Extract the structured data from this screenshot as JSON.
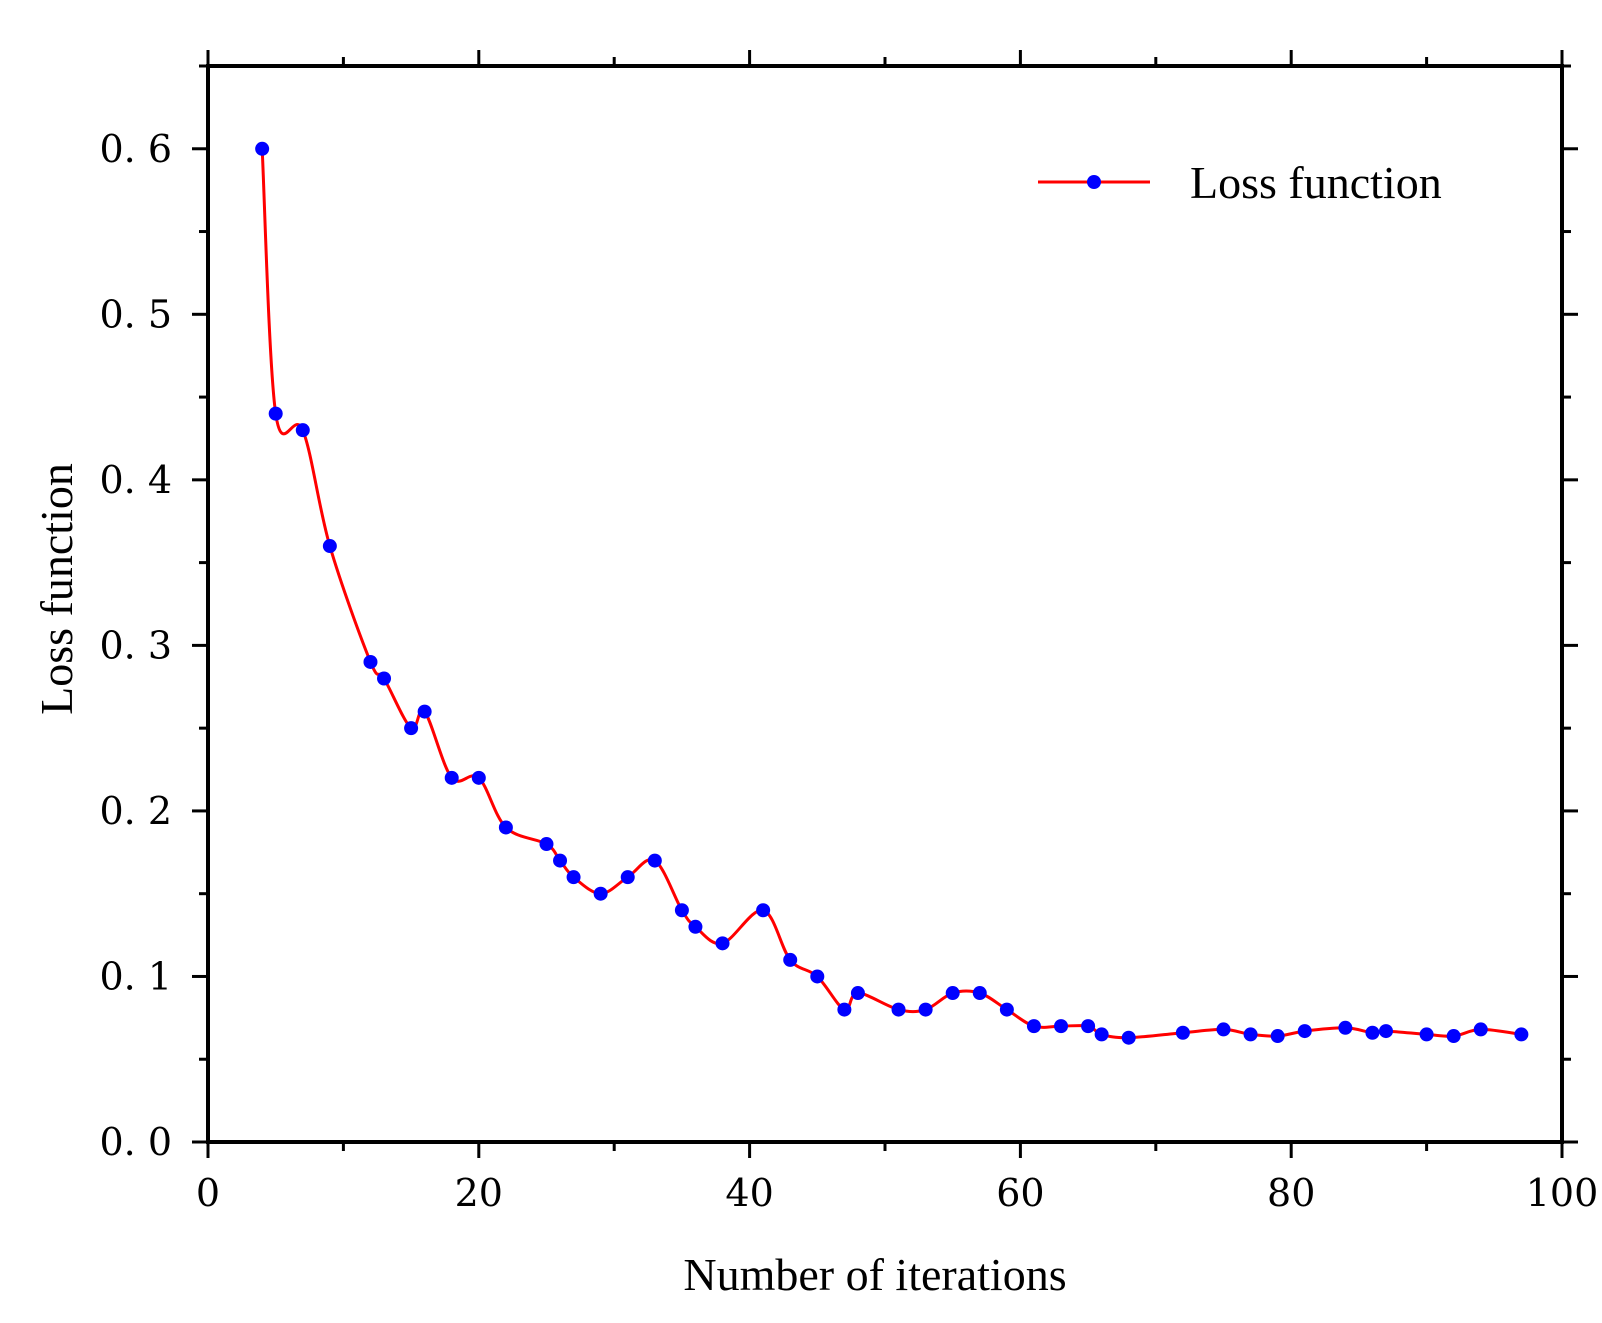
{
  "chart_data": {
    "type": "line",
    "title": "",
    "xlabel": "Number of iterations",
    "ylabel": "Loss function",
    "xlim": [
      0,
      100
    ],
    "ylim": [
      0,
      0.65
    ],
    "x_ticks": [
      0,
      20,
      40,
      60,
      80,
      100
    ],
    "x_tick_labels": [
      "0",
      "20",
      "40",
      "60",
      "80",
      "100"
    ],
    "y_ticks": [
      0,
      0.1,
      0.2,
      0.3,
      0.4,
      0.5,
      0.6
    ],
    "y_tick_labels": [
      "0. 0",
      "0. 1",
      "0. 2",
      "0. 3",
      "0. 4",
      "0. 5",
      "0. 6"
    ],
    "grid": false,
    "legend_position": "top-right",
    "series": [
      {
        "name": "Loss function",
        "line_color": "#ff0000",
        "marker_color": "#0000ff",
        "x": [
          4,
          5,
          7,
          9,
          12,
          13,
          15,
          16,
          18,
          20,
          22,
          25,
          26,
          27,
          29,
          31,
          33,
          35,
          36,
          38,
          41,
          43,
          45,
          47,
          48,
          51,
          53,
          55,
          57,
          59,
          61,
          63,
          65,
          66,
          68,
          72,
          75,
          77,
          79,
          81,
          84,
          86,
          87,
          90,
          92,
          94,
          97
        ],
        "y": [
          0.6,
          0.44,
          0.43,
          0.36,
          0.29,
          0.28,
          0.25,
          0.26,
          0.22,
          0.22,
          0.19,
          0.18,
          0.17,
          0.16,
          0.15,
          0.16,
          0.17,
          0.14,
          0.13,
          0.12,
          0.14,
          0.11,
          0.1,
          0.08,
          0.09,
          0.08,
          0.08,
          0.09,
          0.09,
          0.08,
          0.07,
          0.07,
          0.07,
          0.065,
          0.063,
          0.066,
          0.068,
          0.065,
          0.064,
          0.067,
          0.069,
          0.066,
          0.067,
          0.065,
          0.064,
          0.068,
          0.065
        ]
      }
    ]
  }
}
